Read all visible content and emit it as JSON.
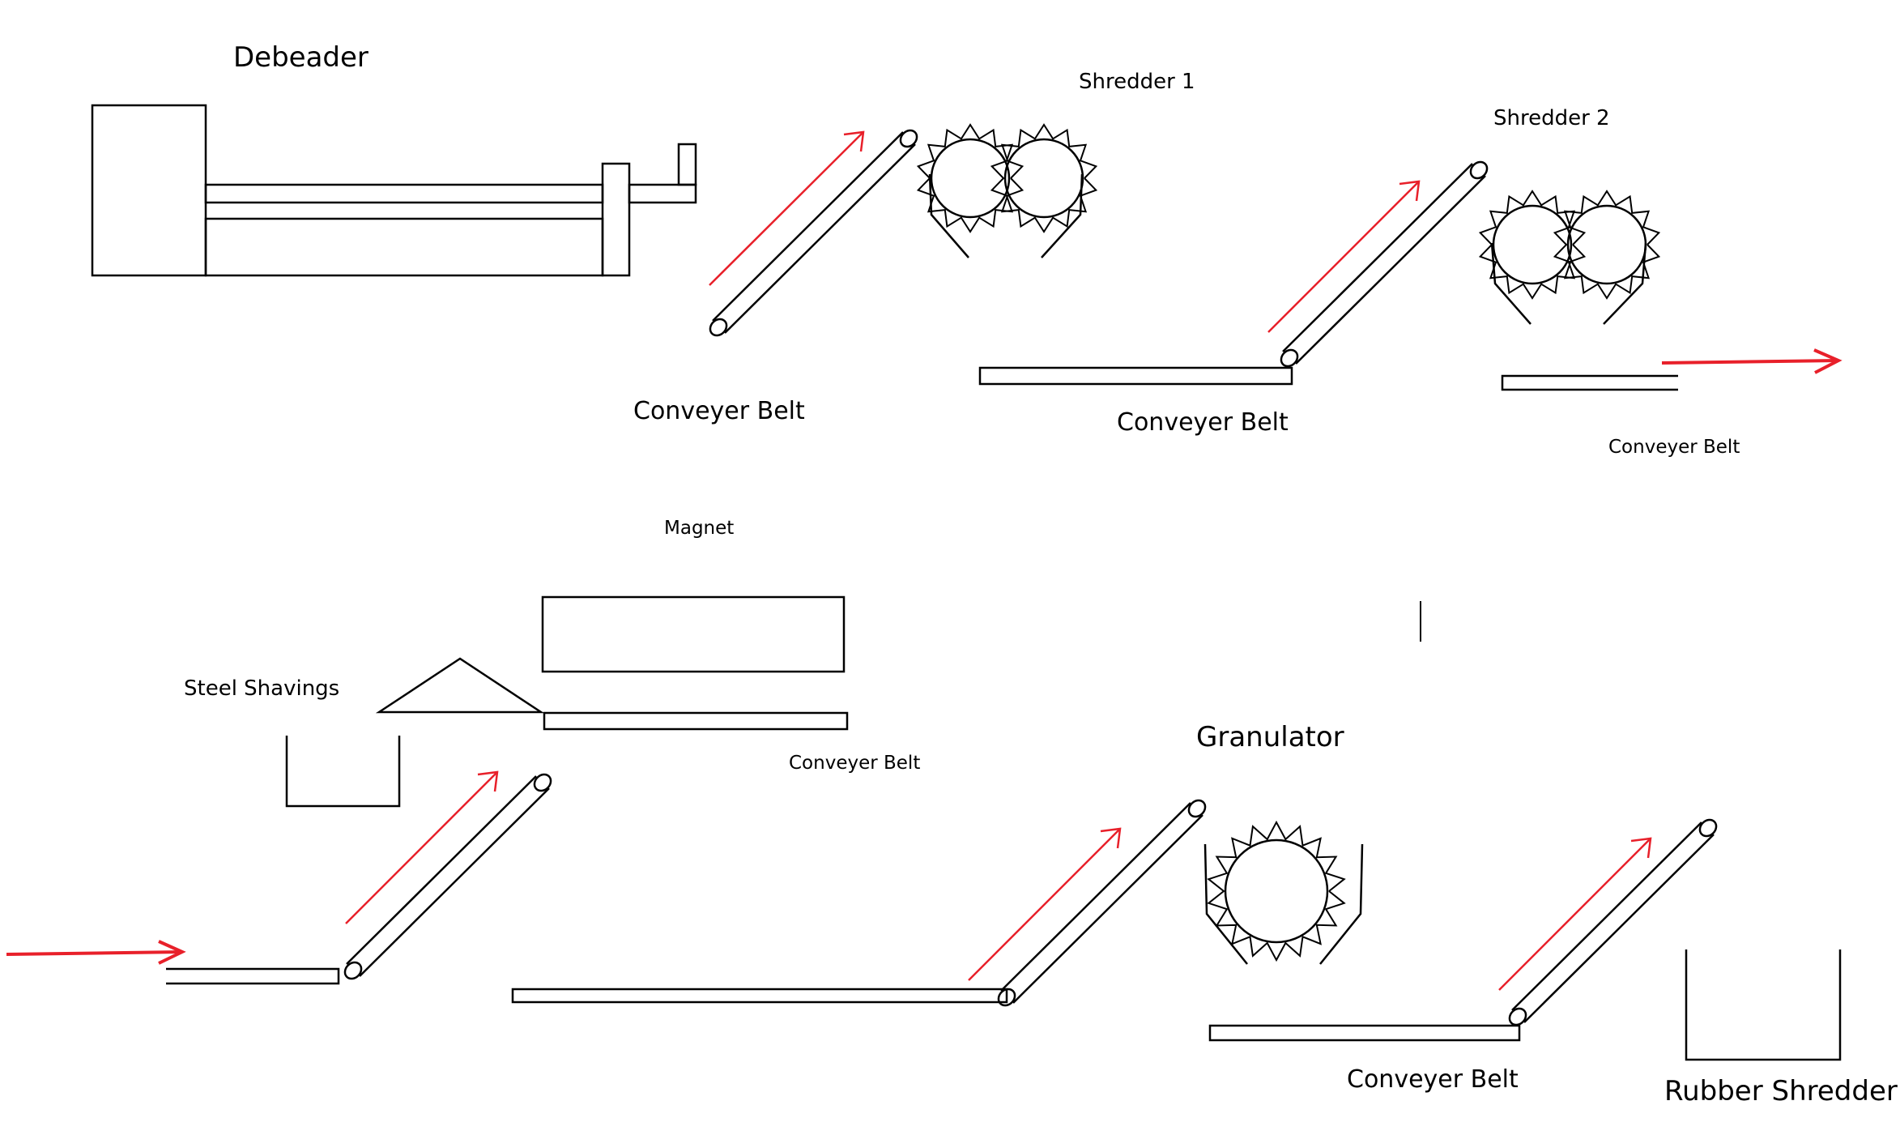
{
  "labels": {
    "debeader": "Debeader",
    "shredder1": "Shredder 1",
    "shredder2": "Shredder 2",
    "conveyor1": "Conveyer Belt",
    "conveyor2": "Conveyer Belt",
    "conveyor3": "Conveyer Belt",
    "magnet": "Magnet",
    "steel_shavings": "Steel Shavings",
    "conveyor4": "Conveyer Belt",
    "granulator": "Granulator",
    "conveyor5": "Conveyer Belt",
    "rubber_shredder": "Rubber Shredder"
  },
  "colors": {
    "line": "#000000",
    "flow_arrow": "#e8202a"
  }
}
